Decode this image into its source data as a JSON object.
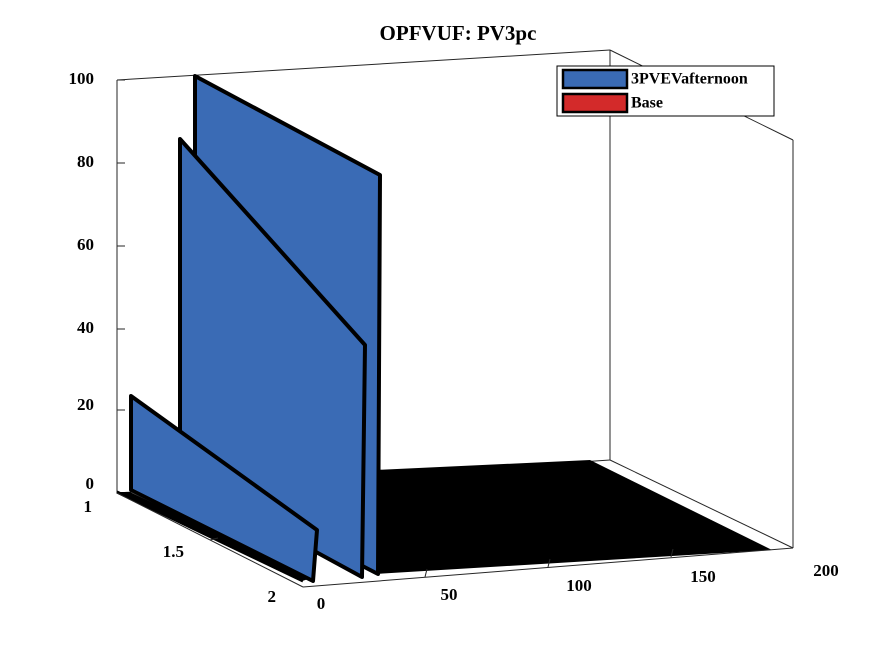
{
  "chart_data": {
    "type": "bar",
    "view": "3d",
    "title": "OPFVUF: PV3pc",
    "xlabel": "",
    "ylabel": "",
    "zlabel": "",
    "x_ticks": [
      "0",
      "50",
      "100",
      "150",
      "200"
    ],
    "y_ticks": [
      "1",
      "1.5",
      "2"
    ],
    "z_ticks": [
      "0",
      "20",
      "40",
      "60",
      "80",
      "100"
    ],
    "xlim": [
      0,
      200
    ],
    "ylim": [
      1,
      2
    ],
    "zlim": [
      0,
      100
    ],
    "legend_position": "top-right",
    "series": [
      {
        "name": "3PVEVafternoon",
        "color": "#3a6bb5"
      },
      {
        "name": "Base",
        "color": "#d32a2a"
      }
    ]
  }
}
